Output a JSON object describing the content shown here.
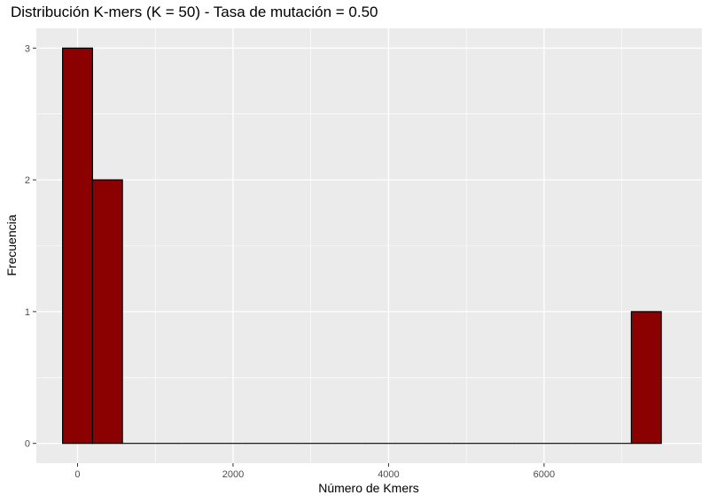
{
  "chart_data": {
    "type": "bar",
    "title": "Distribución K-mers (K = 50) - Tasa de mutación = 0.50",
    "xlabel": "Número de Kmers",
    "ylabel": "Frecuencia",
    "xlim": [
      -530,
      8030
    ],
    "ylim": [
      -0.15,
      3.15
    ],
    "x_ticks": [
      0,
      2000,
      4000,
      6000
    ],
    "x_tick_labels": [
      "0",
      "2000",
      "4000",
      "6000"
    ],
    "y_ticks": [
      0,
      1,
      2,
      3
    ],
    "y_tick_labels": [
      "0",
      "1",
      "2",
      "3"
    ],
    "bin_width": 385,
    "bin_start": -192.5,
    "bin_count": 20,
    "bins": [
      {
        "x_min": -192.5,
        "x_max": 192.5,
        "count": 3
      },
      {
        "x_min": 192.5,
        "x_max": 577.5,
        "count": 2
      },
      {
        "x_min": 7200,
        "x_max": 7585,
        "count": 1
      }
    ],
    "fill_color": "#8B0000",
    "outline_color": "#000000",
    "panel_background": "#EBEBEB",
    "grid_color": "#FFFFFF",
    "grid": true,
    "legend": "none"
  }
}
